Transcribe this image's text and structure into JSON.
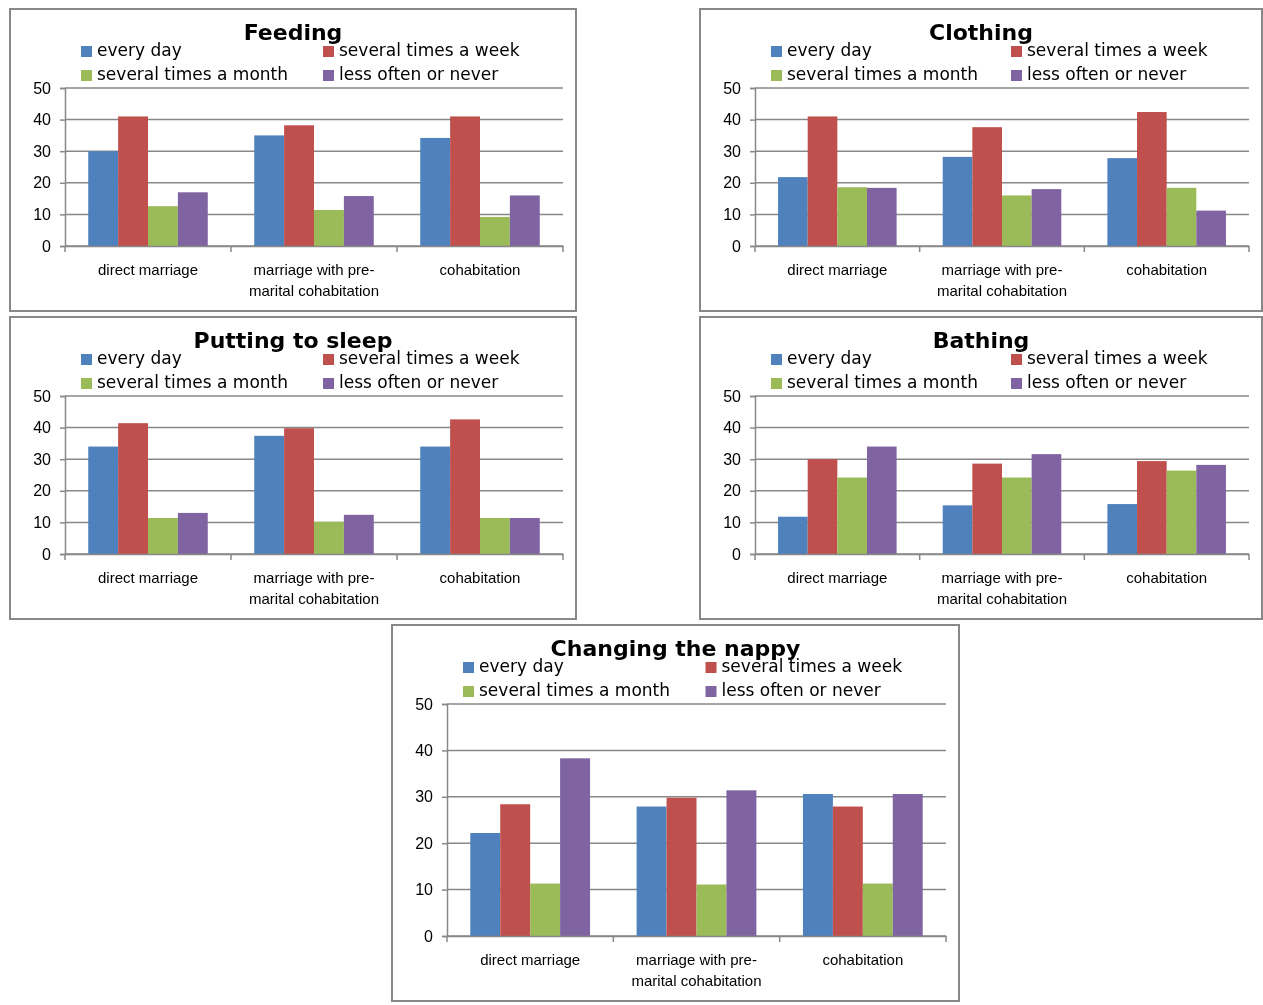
{
  "chart_data": [
    {
      "type": "bar",
      "title": "Feeding",
      "categories": [
        "direct marriage",
        "marriage with pre-marital cohabitation",
        "cohabitation"
      ],
      "ylim": [
        0,
        50
      ],
      "yticks": [
        0,
        10,
        20,
        30,
        40,
        50
      ],
      "grid": "y",
      "legend": "top",
      "series": [
        {
          "name": "every day",
          "color": "#4f81bd",
          "values": [
            30,
            35,
            34.2
          ]
        },
        {
          "name": "several times a week",
          "color": "#c0504d",
          "values": [
            41,
            38.2,
            41
          ]
        },
        {
          "name": "several times a month",
          "color": "#9bbb59",
          "values": [
            12.6,
            11.4,
            9.2
          ]
        },
        {
          "name": "less often or never",
          "color": "#8064a2",
          "values": [
            17,
            15.8,
            16
          ]
        }
      ]
    },
    {
      "type": "bar",
      "title": "Clothing",
      "categories": [
        "direct marriage",
        "marriage with pre-marital cohabitation",
        "cohabitation"
      ],
      "ylim": [
        0,
        50
      ],
      "yticks": [
        0,
        10,
        20,
        30,
        40,
        50
      ],
      "grid": "y",
      "legend": "top",
      "series": [
        {
          "name": "every day",
          "color": "#4f81bd",
          "values": [
            21.8,
            28.2,
            27.8
          ]
        },
        {
          "name": "several times a week",
          "color": "#c0504d",
          "values": [
            41,
            37.6,
            42.4
          ]
        },
        {
          "name": "several times a month",
          "color": "#9bbb59",
          "values": [
            18.6,
            16,
            18.4
          ]
        },
        {
          "name": "less often or never",
          "color": "#8064a2",
          "values": [
            18.4,
            18,
            11.2
          ]
        }
      ]
    },
    {
      "type": "bar",
      "title": "Putting to sleep",
      "categories": [
        "direct marriage",
        "marriage with pre-marital cohabitation",
        "cohabitation"
      ],
      "ylim": [
        0,
        50
      ],
      "yticks": [
        0,
        10,
        20,
        30,
        40,
        50
      ],
      "grid": "y",
      "legend": "top",
      "series": [
        {
          "name": "every day",
          "color": "#4f81bd",
          "values": [
            34,
            37.4,
            34
          ]
        },
        {
          "name": "several times a week",
          "color": "#c0504d",
          "values": [
            41.4,
            39.8,
            42.6
          ]
        },
        {
          "name": "several times a month",
          "color": "#9bbb59",
          "values": [
            11.4,
            10.2,
            11.4
          ]
        },
        {
          "name": "less often or never",
          "color": "#8064a2",
          "values": [
            13,
            12.4,
            11.4
          ]
        }
      ]
    },
    {
      "type": "bar",
      "title": "Bathing",
      "categories": [
        "direct marriage",
        "marriage with pre-marital cohabitation",
        "cohabitation"
      ],
      "ylim": [
        0,
        50
      ],
      "yticks": [
        0,
        10,
        20,
        30,
        40,
        50
      ],
      "grid": "y",
      "legend": "top",
      "series": [
        {
          "name": "every day",
          "color": "#4f81bd",
          "values": [
            11.8,
            15.4,
            15.8
          ]
        },
        {
          "name": "several times a week",
          "color": "#c0504d",
          "values": [
            30,
            28.6,
            29.4
          ]
        },
        {
          "name": "several times a month",
          "color": "#9bbb59",
          "values": [
            24.2,
            24.2,
            26.4
          ]
        },
        {
          "name": "less often or never",
          "color": "#8064a2",
          "values": [
            34,
            31.6,
            28.2
          ]
        }
      ]
    },
    {
      "type": "bar",
      "title": "Changing the nappy",
      "categories": [
        "direct marriage",
        "marriage with pre-marital cohabitation",
        "cohabitation"
      ],
      "ylim": [
        0,
        50
      ],
      "yticks": [
        0,
        10,
        20,
        30,
        40,
        50
      ],
      "grid": "y",
      "legend": "top",
      "series": [
        {
          "name": "every day",
          "color": "#4f81bd",
          "values": [
            22.2,
            27.9,
            30.6
          ]
        },
        {
          "name": "several times a week",
          "color": "#c0504d",
          "values": [
            28.4,
            29.8,
            27.9
          ]
        },
        {
          "name": "several times a month",
          "color": "#9bbb59",
          "values": [
            11.3,
            11.1,
            11.3
          ]
        },
        {
          "name": "less often or never",
          "color": "#8064a2",
          "values": [
            38.3,
            31.4,
            30.6
          ]
        }
      ]
    }
  ]
}
